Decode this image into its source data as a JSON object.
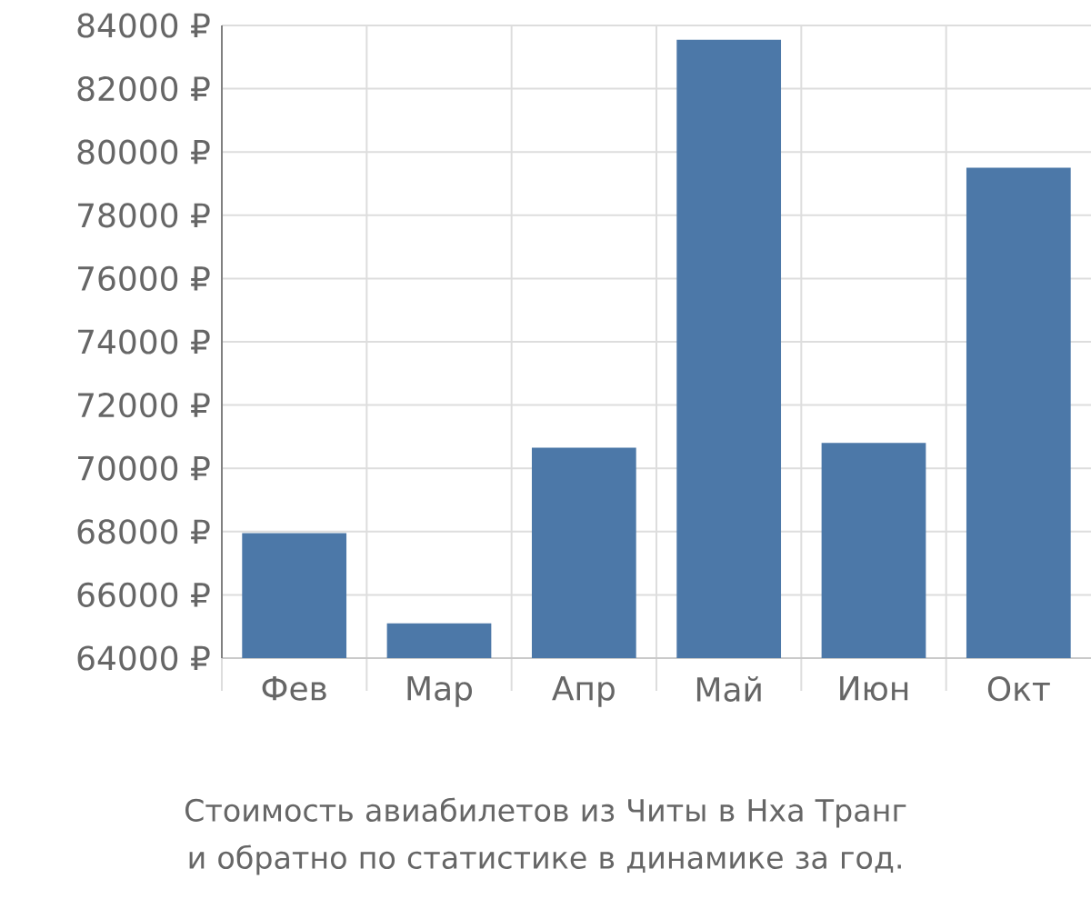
{
  "chart_data": {
    "type": "bar",
    "categories": [
      "Фев",
      "Мар",
      "Апр",
      "Май",
      "Июн",
      "Окт"
    ],
    "values": [
      67950,
      65100,
      70650,
      83550,
      70800,
      79500
    ],
    "color": "#4c78a8",
    "ylim": [
      64000,
      84000
    ],
    "yticks": [
      {
        "value": 64000,
        "label": "64000 ₽"
      },
      {
        "value": 66000,
        "label": "66000 ₽"
      },
      {
        "value": 68000,
        "label": "68000 ₽"
      },
      {
        "value": 70000,
        "label": "70000 ₽"
      },
      {
        "value": 72000,
        "label": "72000 ₽"
      },
      {
        "value": 74000,
        "label": "74000 ₽"
      },
      {
        "value": 76000,
        "label": "76000 ₽"
      },
      {
        "value": 78000,
        "label": "78000 ₽"
      },
      {
        "value": 80000,
        "label": "80000 ₽"
      },
      {
        "value": 82000,
        "label": "82000 ₽"
      },
      {
        "value": 84000,
        "label": "84000 ₽"
      }
    ],
    "grid": true,
    "annotations": [
      "Стоимость авиабилетов из Читы в Нха Транг и обратно по статистике в динамике за год."
    ]
  }
}
